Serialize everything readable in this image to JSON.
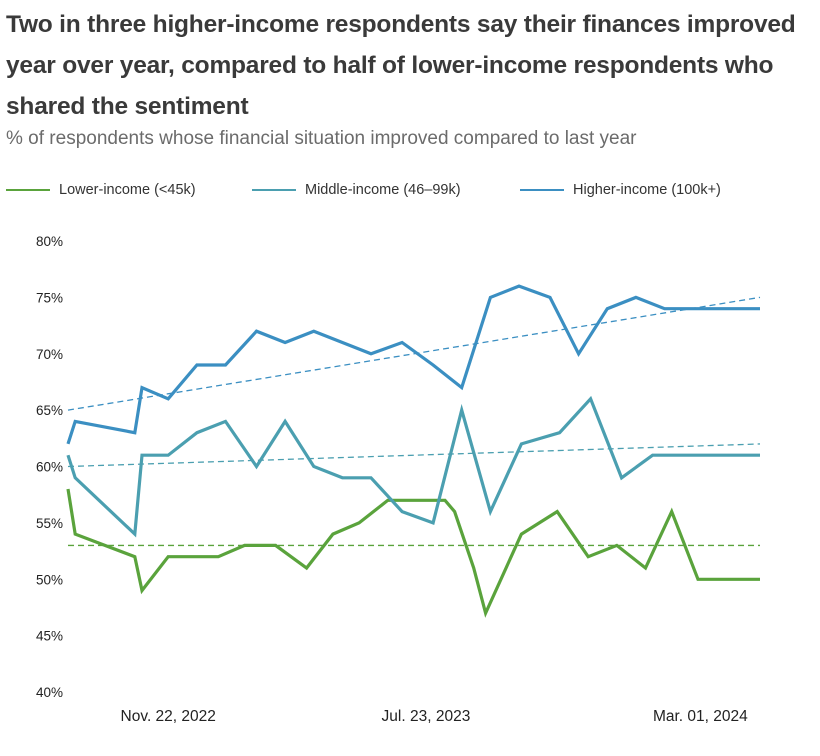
{
  "header": {
    "title": "Two in three higher-income respondents say their finances improved year over year, compared to half of lower-income respondents who shared the sentiment",
    "subtitle": "% of respondents whose financial situation improved compared to last year"
  },
  "legend": [
    {
      "label": "Lower-income (<45k)",
      "color": "#5aa33c"
    },
    {
      "label": "Middle-income (46–99k)",
      "color": "#4b9fb0"
    },
    {
      "label": "Higher-income (100k+)",
      "color": "#3b8fc2"
    }
  ],
  "chart_data": {
    "type": "line",
    "title": "Two in three higher-income respondents say their finances improved year over year, compared to half of lower-income respondents who shared the sentiment",
    "subtitle": "% of respondents whose financial situation improved compared to last year",
    "x_axis": {
      "range": [
        0,
        29
      ],
      "tick_labels": [
        "Nov. 22, 2022",
        "Jul. 23, 2023",
        "Mar. 01, 2024"
      ],
      "tick_positions": [
        4.2,
        15,
        26.5
      ]
    },
    "y_axis": {
      "range": [
        40,
        80
      ],
      "step": 5,
      "tick_labels": [
        "80%",
        "75%",
        "70%",
        "65%",
        "60%",
        "55%",
        "50%",
        "45%",
        "40%"
      ]
    },
    "legend_position": "top",
    "grid": false,
    "series": [
      {
        "name": "Lower-income (<45k)",
        "color": "#5aa33c",
        "x": [
          0,
          0.3,
          2.8,
          3.1,
          4.2,
          6.3,
          7.4,
          8.7,
          10,
          11.1,
          12.2,
          13.4,
          15,
          15.8,
          16.2,
          17,
          17.5,
          19,
          20.5,
          21.8,
          23,
          24.2,
          25.3,
          26.4,
          27.7,
          29
        ],
        "values": [
          58,
          54,
          52,
          49,
          52,
          52,
          53,
          53,
          51,
          54,
          55,
          57,
          57,
          57,
          56,
          51,
          47,
          54,
          56,
          52,
          53,
          51,
          56,
          50,
          50,
          50
        ],
        "trend": [
          53,
          53
        ]
      },
      {
        "name": "Middle-income (46–99k)",
        "color": "#4b9fb0",
        "x": [
          0,
          0.3,
          2.8,
          3.1,
          4.2,
          5.4,
          6.6,
          7.9,
          9.1,
          10.3,
          11.5,
          12.7,
          14,
          15.3,
          16.5,
          17.7,
          19,
          20.6,
          21.9,
          23.2,
          24.5,
          25.6,
          26.8,
          29
        ],
        "values": [
          61,
          59,
          54,
          61,
          61,
          63,
          64,
          60,
          64,
          60,
          59,
          59,
          56,
          55,
          65,
          56,
          62,
          63,
          66,
          59,
          61,
          61,
          61,
          61
        ],
        "trend": [
          60,
          62
        ]
      },
      {
        "name": "Higher-income (100k+)",
        "color": "#3b8fc2",
        "x": [
          0,
          0.3,
          2.8,
          3.1,
          4.2,
          5.4,
          6.6,
          7.9,
          9.1,
          10.3,
          11.5,
          12.7,
          14,
          15.3,
          16.5,
          17.7,
          18.9,
          20.2,
          21.4,
          22.6,
          23.8,
          25,
          26.2,
          27.4,
          29
        ],
        "values": [
          62,
          64,
          63,
          67,
          66,
          69,
          69,
          72,
          71,
          72,
          71,
          70,
          71,
          69,
          67,
          75,
          76,
          75,
          70,
          74,
          75,
          74,
          74,
          74,
          74
        ],
        "trend": [
          65,
          75
        ]
      }
    ]
  }
}
